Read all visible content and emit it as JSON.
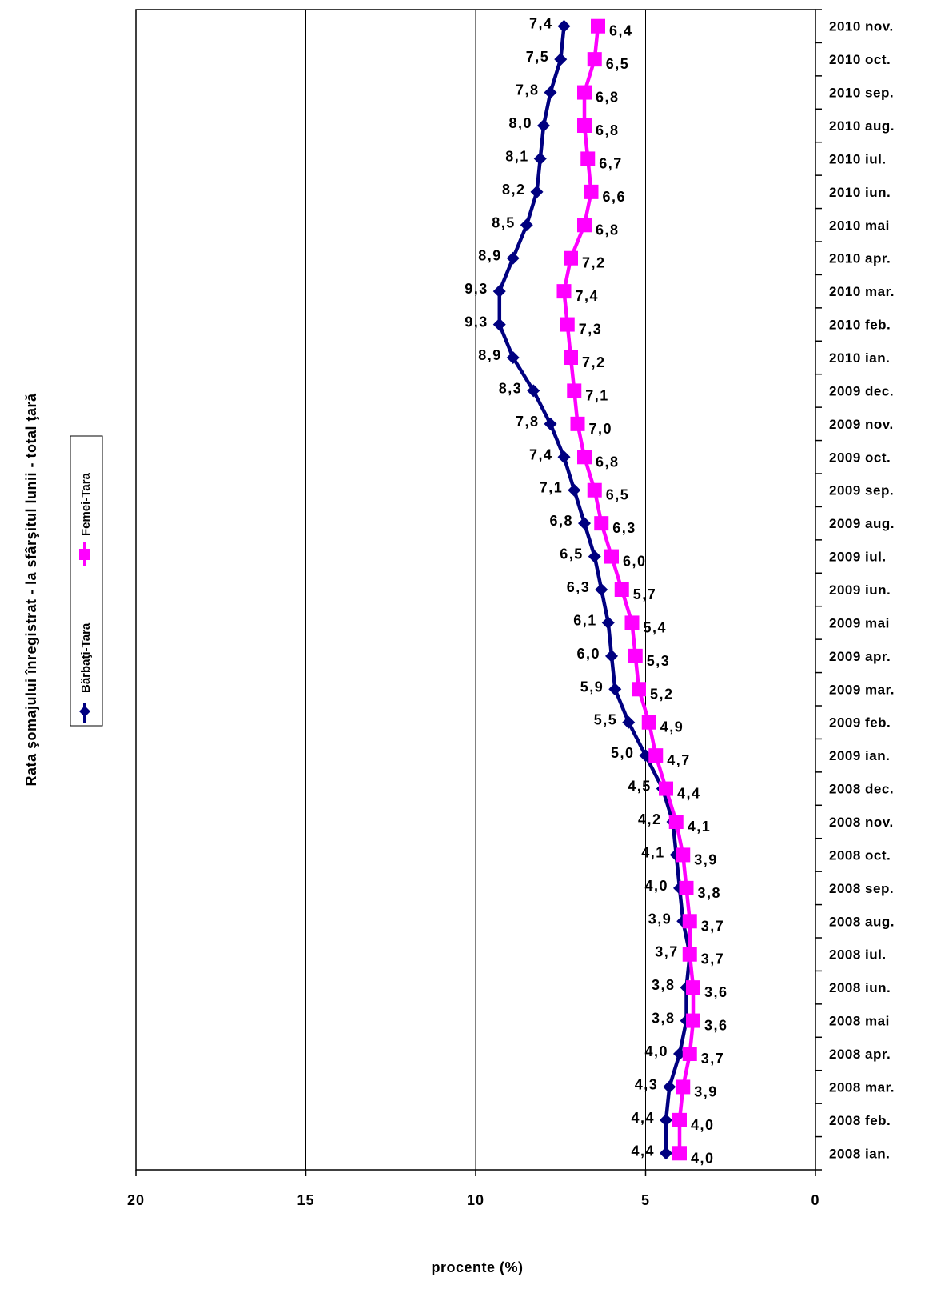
{
  "chart_data": {
    "type": "line",
    "orientation": "horizontal-values-reversed",
    "title": "",
    "ylabel": "Rata şomajului înregistrat - la sfârşitul lunii - total ţară",
    "xlabel": "procente (%)",
    "xlim": [
      0,
      20
    ],
    "x_reversed": true,
    "x_ticks": [
      "20",
      "15",
      "10",
      "5",
      "0"
    ],
    "grid": true,
    "legend_position": "left",
    "categories": [
      "2008 ian.",
      "2008 feb.",
      "2008 mar.",
      "2008 apr.",
      "2008 mai",
      "2008 iun.",
      "2008 iul.",
      "2008 aug.",
      "2008 sep.",
      "2008 oct.",
      "2008 nov.",
      "2008 dec.",
      "2009 ian.",
      "2009 feb.",
      "2009 mar.",
      "2009 apr.",
      "2009 mai",
      "2009 iun.",
      "2009 iul.",
      "2009 aug.",
      "2009 sep.",
      "2009 oct.",
      "2009 nov.",
      "2009 dec.",
      "2010 ian.",
      "2010 feb.",
      "2010 mar.",
      "2010 apr.",
      "2010 mai",
      "2010 iun.",
      "2010 iul.",
      "2010 aug.",
      "2010 sep.",
      "2010 oct.",
      "2010 nov."
    ],
    "series": [
      {
        "name": "Bărbaţi-Tara",
        "color": "#000080",
        "marker": "diamond",
        "values": [
          4.4,
          4.4,
          4.3,
          4.0,
          3.8,
          3.8,
          3.7,
          3.9,
          4.0,
          4.1,
          4.2,
          4.5,
          5.0,
          5.5,
          5.9,
          6.0,
          6.1,
          6.3,
          6.5,
          6.8,
          7.1,
          7.4,
          7.8,
          8.3,
          8.9,
          9.3,
          9.3,
          8.9,
          8.5,
          8.2,
          8.1,
          8.0,
          7.8,
          7.5,
          7.4
        ],
        "labels": [
          "4,4",
          "4,4",
          "4,3",
          "4,0",
          "3,8",
          "3,8",
          "3,7",
          "3,9",
          "4,0",
          "4,1",
          "4,2",
          "4,5",
          "5,0",
          "5,5",
          "5,9",
          "6,0",
          "6,1",
          "6,3",
          "6,5",
          "6,8",
          "7,1",
          "7,4",
          "7,8",
          "8,3",
          "8,9",
          "9,3",
          "9,3",
          "8,9",
          "8,5",
          "8,2",
          "8,1",
          "8,0",
          "7,8",
          "7,5",
          "7,4"
        ]
      },
      {
        "name": "Femei-Tara",
        "color": "#ff00ff",
        "marker": "square",
        "values": [
          4.0,
          4.0,
          3.9,
          3.7,
          3.6,
          3.6,
          3.7,
          3.7,
          3.8,
          3.9,
          4.1,
          4.4,
          4.7,
          4.9,
          5.2,
          5.3,
          5.4,
          5.7,
          6.0,
          6.3,
          6.5,
          6.8,
          7.0,
          7.1,
          7.2,
          7.3,
          7.4,
          7.2,
          6.8,
          6.6,
          6.7,
          6.8,
          6.8,
          6.5,
          6.4
        ],
        "labels": [
          "4,0",
          "4,0",
          "3,9",
          "3,7",
          "3,6",
          "3,6",
          "3,7",
          "3,7",
          "3,8",
          "3,9",
          "4,1",
          "4,4",
          "4,7",
          "4,9",
          "5,2",
          "5,3",
          "5,4",
          "5,7",
          "6,0",
          "6,3",
          "6,5",
          "6,8",
          "7,0",
          "7,1",
          "7,2",
          "7,3",
          "7,4",
          "7,2",
          "6,8",
          "6,6",
          "6,7",
          "6,8",
          "6,8",
          "6,5",
          "6,4"
        ]
      }
    ]
  }
}
